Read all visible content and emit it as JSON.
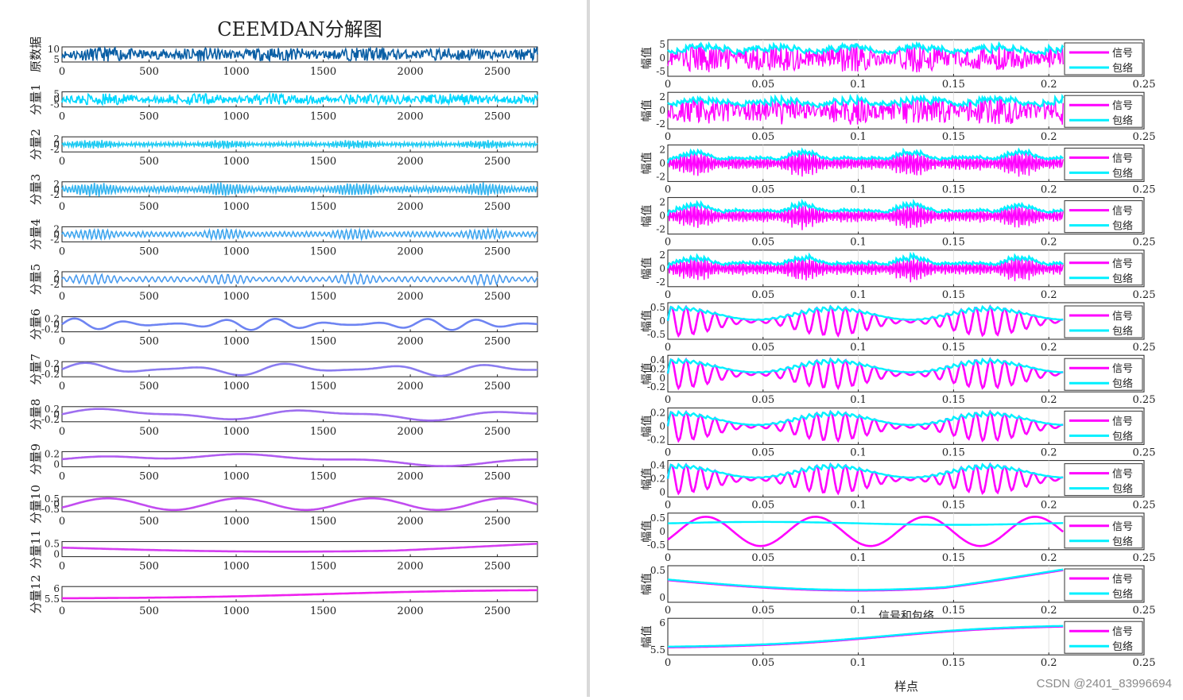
{
  "left": {
    "title": "CEEMDAN分解图",
    "x_ticks": [
      0,
      500,
      1000,
      1500,
      2000,
      2500
    ],
    "x_max": 2730,
    "rows": [
      {
        "label": "原数据",
        "yticks": [
          "10",
          "5"
        ],
        "color": "#0b5fa5",
        "amp": 0.42,
        "freq": 0.9,
        "type": "noise"
      },
      {
        "label": "分量1",
        "yticks": [
          "5",
          "0",
          "-5"
        ],
        "color": "#00d8ff",
        "amp": 0.35,
        "freq": 1.0,
        "type": "noise"
      },
      {
        "label": "分量2",
        "yticks": [
          "2",
          "0",
          "-2"
        ],
        "color": "#1ccaf2",
        "amp": 0.3,
        "freq": 0.9,
        "type": "bursty"
      },
      {
        "label": "分量3",
        "yticks": [
          "2",
          "0",
          "-2"
        ],
        "color": "#33b4f0",
        "amp": 0.45,
        "freq": 0.7,
        "type": "bursty"
      },
      {
        "label": "分量4",
        "yticks": [
          "2",
          "0",
          "-2"
        ],
        "color": "#3fa6ef",
        "amp": 0.35,
        "freq": 0.5,
        "type": "bursty"
      },
      {
        "label": "分量5",
        "yticks": [
          "2",
          "0",
          "-2"
        ],
        "color": "#4a9cf0",
        "amp": 0.35,
        "freq": 0.35,
        "type": "bursty"
      },
      {
        "label": "分量6",
        "yticks": [
          "0.2",
          "0",
          "-0.2"
        ],
        "color": "#6e84f2",
        "amp": 0.35,
        "freq": 0.09,
        "type": "wave"
      },
      {
        "label": "分量7",
        "yticks": [
          "0.2",
          "0",
          "-0.2"
        ],
        "color": "#8a7cf0",
        "amp": 0.4,
        "freq": 0.045,
        "type": "wave"
      },
      {
        "label": "分量8",
        "yticks": [
          "0.2",
          "0",
          "-0.2"
        ],
        "color": "#9e6ef0",
        "amp": 0.42,
        "freq": 0.022,
        "type": "wave"
      },
      {
        "label": "分量9",
        "yticks": [
          "0.2",
          "0"
        ],
        "color": "#b05cf0",
        "amp": 0.42,
        "freq": 0.009,
        "type": "wave"
      },
      {
        "label": "分量10",
        "yticks": [
          "0.5",
          "0",
          "-0.5"
        ],
        "color": "#c24cf0",
        "amp": 0.35,
        "freq": 0.0035,
        "type": "smooth"
      },
      {
        "label": "分量11",
        "yticks": [
          "0.5",
          "0"
        ],
        "color": "#d43ef0",
        "amp": 0.3,
        "freq": 0.0,
        "type": "trend11"
      },
      {
        "label": "分量12",
        "yticks": [
          "6",
          "5.5"
        ],
        "color": "#ee22ee",
        "amp": 0.3,
        "freq": 0.0,
        "type": "trend12"
      }
    ]
  },
  "right": {
    "x_ticks": [
      "0",
      "0.05",
      "0.1",
      "0.15",
      "0.2",
      "0.25"
    ],
    "x_label": "样点",
    "y_label": "幅值",
    "legend_signal": "信号",
    "legend_envelope": "包络",
    "signal_color": "#ff00ff",
    "envelope_color": "#00f0ff",
    "middle_title": "信号和包络",
    "rows": [
      {
        "yticks": [
          "5",
          "0",
          "-5"
        ],
        "type": "noise"
      },
      {
        "yticks": [
          "2",
          "0",
          "-2"
        ],
        "type": "noise"
      },
      {
        "yticks": [
          "2",
          "0",
          "-2"
        ],
        "type": "bursty"
      },
      {
        "yticks": [
          "2",
          "0",
          "-2"
        ],
        "type": "bursty"
      },
      {
        "yticks": [
          "2",
          "0",
          "-2"
        ],
        "type": "bursty"
      },
      {
        "yticks": [
          "0.5",
          "0",
          "-0.5"
        ],
        "type": "wave"
      },
      {
        "yticks": [
          "0.4",
          "0.2",
          "0",
          "-0.2"
        ],
        "type": "wave"
      },
      {
        "yticks": [
          "0.2",
          "0",
          "-0.2"
        ],
        "type": "wave"
      },
      {
        "yticks": [
          "0.4",
          "0.2",
          "0"
        ],
        "type": "wave"
      },
      {
        "yticks": [
          "0.5",
          "0",
          "-0.5"
        ],
        "type": "smooth"
      },
      {
        "yticks": [
          "0.5",
          "0"
        ],
        "type": "trend11"
      },
      {
        "yticks": [
          "6",
          "5.5"
        ],
        "type": "trend12"
      }
    ]
  },
  "watermark": "CSDN @2401_83996694"
}
